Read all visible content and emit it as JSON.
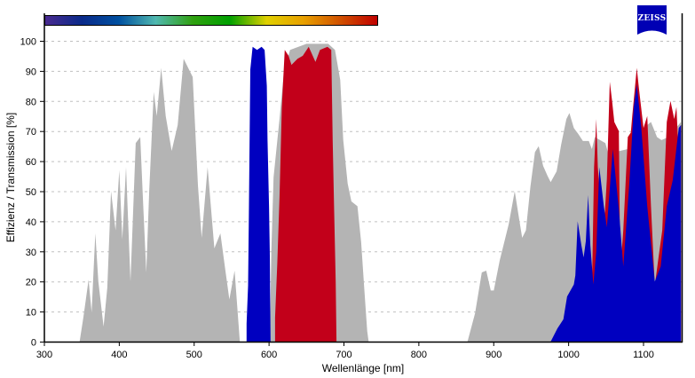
{
  "logo_text": "ZEISS",
  "colors": {
    "grey": "#b4b4b4",
    "blue": "#0000c0",
    "red": "#c2001a",
    "logo": "#0000b4"
  },
  "spectrum_bar_colors": [
    "#4a2a90",
    "#0a2a8a",
    "#0050a0",
    "#50b8b0",
    "#30a010",
    "#00a000",
    "#e0d000",
    "#e8a000",
    "#d05000",
    "#c00000"
  ],
  "chart_data": {
    "type": "area",
    "xlabel": "Wellenlänge [nm]",
    "ylabel": "Effizienz / Transmission [%]",
    "xlim": [
      300,
      1150
    ],
    "ylim": [
      0,
      100
    ],
    "grid": "horizontal dashed",
    "xticks": [
      "300",
      "400",
      "500",
      "600",
      "700",
      "800",
      "900",
      "1000",
      "1100"
    ],
    "yticks": [
      "0",
      "10",
      "20",
      "30",
      "40",
      "50",
      "60",
      "70",
      "80",
      "90",
      "100"
    ],
    "series": [
      {
        "color": "#b4b4b4",
        "segments": [
          [
            [
              347,
              0
            ],
            [
              352,
              8
            ],
            [
              359,
              20.6
            ],
            [
              363,
              9.7
            ],
            [
              368,
              36
            ],
            [
              372,
              20
            ],
            [
              379,
              5
            ],
            [
              384,
              18
            ],
            [
              389,
              50
            ],
            [
              395,
              37
            ],
            [
              400,
              57
            ],
            [
              404,
              34
            ],
            [
              409,
              58
            ],
            [
              415,
              20
            ],
            [
              422,
              66
            ],
            [
              428,
              68
            ],
            [
              432,
              45
            ],
            [
              436,
              23
            ],
            [
              440,
              50
            ],
            [
              446,
              83
            ],
            [
              450,
              75
            ],
            [
              456,
              91
            ],
            [
              462,
              75
            ],
            [
              470,
              63.4
            ],
            [
              478,
              72
            ],
            [
              486,
              94
            ],
            [
              498,
              88
            ],
            [
              505,
              52
            ],
            [
              510,
              34.5
            ],
            [
              518,
              58
            ],
            [
              527,
              31
            ],
            [
              535,
              36
            ],
            [
              541,
              25
            ],
            [
              547,
              14
            ],
            [
              554,
              23.6
            ],
            [
              558,
              10
            ],
            [
              561,
              0
            ]
          ],
          [
            [
              601,
              0
            ],
            [
              603,
              30
            ],
            [
              606,
              54.6
            ],
            [
              614,
              74
            ],
            [
              620,
              90
            ],
            [
              628,
              97
            ],
            [
              650,
              99
            ],
            [
              679,
              99
            ],
            [
              688,
              97
            ],
            [
              695,
              87
            ],
            [
              699,
              67
            ],
            [
              705,
              52.5
            ],
            [
              710,
              46.6
            ],
            [
              718,
              45
            ],
            [
              723,
              33
            ],
            [
              727,
              18
            ],
            [
              731,
              3.5
            ],
            [
              733,
              0
            ]
          ],
          [
            [
              865,
              0
            ],
            [
              875,
              9.4
            ],
            [
              884,
              23
            ],
            [
              890,
              23.6
            ],
            [
              896,
              17
            ],
            [
              900,
              17
            ],
            [
              908,
              27
            ],
            [
              920,
              39
            ],
            [
              928,
              50
            ],
            [
              934,
              40.7
            ],
            [
              938,
              34.5
            ],
            [
              943,
              37
            ],
            [
              949,
              51.6
            ],
            [
              955,
              63
            ],
            [
              960,
              65
            ],
            [
              966,
              58.4
            ],
            [
              972,
              55
            ],
            [
              976,
              53
            ],
            [
              984,
              56.6
            ],
            [
              990,
              65.5
            ],
            [
              997,
              74
            ],
            [
              1001,
              76
            ],
            [
              1007,
              71
            ],
            [
              1013,
              69
            ],
            [
              1019,
              66.7
            ],
            [
              1027,
              66.7
            ],
            [
              1031,
              64
            ],
            [
              1035,
              68
            ],
            [
              1049,
              66
            ],
            [
              1053,
              62.5
            ],
            [
              1079,
              64
            ],
            [
              1085,
              68
            ],
            [
              1110,
              73
            ],
            [
              1118,
              68
            ],
            [
              1124,
              67
            ],
            [
              1133,
              68
            ],
            [
              1150,
              73
            ],
            [
              1150,
              0
            ]
          ]
        ]
      },
      {
        "color": "#c2001a",
        "segments": [
          [
            [
              608,
              0
            ],
            [
              608,
              8
            ],
            [
              611,
              26
            ],
            [
              614,
              48
            ],
            [
              617,
              78
            ],
            [
              621,
              97
            ],
            [
              626,
              95
            ],
            [
              630,
              92
            ],
            [
              638,
              94
            ],
            [
              645,
              95
            ],
            [
              653,
              98
            ],
            [
              662,
              93
            ],
            [
              668,
              97
            ],
            [
              678,
              98
            ],
            [
              683,
              97
            ],
            [
              685,
              67
            ],
            [
              687,
              43
            ],
            [
              689,
              20
            ],
            [
              690,
              0
            ]
          ],
          [
            [
              1030,
              0
            ],
            [
              1031,
              16
            ],
            [
              1034,
              58
            ],
            [
              1037,
              74
            ],
            [
              1039,
              58
            ],
            [
              1042,
              48
            ],
            [
              1047,
              37
            ],
            [
              1051,
              54
            ],
            [
              1055,
              86.4
            ],
            [
              1058,
              80
            ],
            [
              1061,
              73
            ],
            [
              1067,
              70
            ],
            [
              1069,
              23
            ],
            [
              1073,
              37
            ],
            [
              1079,
              68
            ],
            [
              1083,
              69.5
            ],
            [
              1085,
              75
            ],
            [
              1091,
              91
            ],
            [
              1094,
              84
            ],
            [
              1100,
              71
            ],
            [
              1105,
              75
            ],
            [
              1110,
              45
            ],
            [
              1115,
              18.6
            ],
            [
              1120,
              28
            ],
            [
              1125,
              37
            ],
            [
              1131,
              73
            ],
            [
              1136,
              80
            ],
            [
              1141,
              74
            ],
            [
              1144,
              78
            ],
            [
              1146,
              67
            ],
            [
              1150,
              72
            ],
            [
              1150,
              0
            ]
          ]
        ]
      },
      {
        "color": "#0000c0",
        "segments": [
          [
            [
              570,
              0
            ],
            [
              570,
              6
            ],
            [
              572,
              18.6
            ],
            [
              573,
              40
            ],
            [
              575,
              90.5
            ],
            [
              578,
              98
            ],
            [
              584,
              97
            ],
            [
              590,
              98
            ],
            [
              594,
              97
            ],
            [
              597,
              85
            ],
            [
              598,
              67
            ],
            [
              600,
              45
            ],
            [
              601,
              28.6
            ],
            [
              602,
              0
            ]
          ],
          [
            [
              976,
              0
            ],
            [
              985,
              4.4
            ],
            [
              993,
              7.4
            ],
            [
              998,
              15
            ],
            [
              1007,
              19
            ],
            [
              1009,
              22
            ],
            [
              1012,
              40
            ],
            [
              1017,
              32
            ],
            [
              1020,
              28
            ],
            [
              1023,
              33.4
            ],
            [
              1026,
              48.7
            ],
            [
              1029,
              32
            ],
            [
              1033,
              19
            ],
            [
              1037,
              30
            ],
            [
              1041,
              58
            ],
            [
              1047,
              45
            ],
            [
              1051,
              38
            ],
            [
              1059,
              64
            ],
            [
              1067,
              44
            ],
            [
              1073,
              25
            ],
            [
              1081,
              52.5
            ],
            [
              1087,
              78
            ],
            [
              1091,
              85.5
            ],
            [
              1097,
              71
            ],
            [
              1105,
              45
            ],
            [
              1115,
              20
            ],
            [
              1123,
              25
            ],
            [
              1131,
              45
            ],
            [
              1139,
              53.6
            ],
            [
              1147,
              71
            ],
            [
              1150,
              72
            ],
            [
              1150,
              0
            ]
          ]
        ]
      }
    ]
  }
}
